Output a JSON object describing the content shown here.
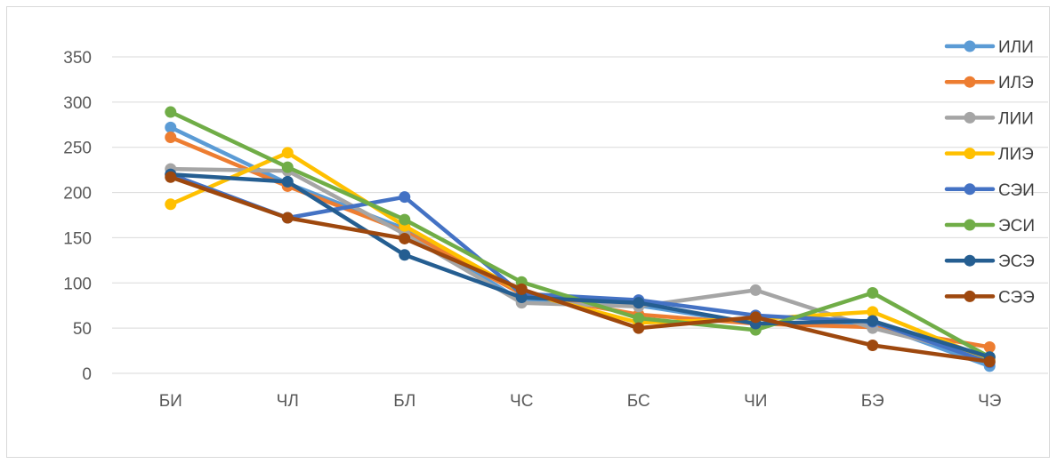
{
  "chart_data": {
    "type": "line",
    "title": "",
    "xlabel": "",
    "ylabel": "",
    "categories": [
      "БИ",
      "ЧЛ",
      "БЛ",
      "ЧС",
      "БС",
      "ЧИ",
      "БЭ",
      "ЧЭ"
    ],
    "ylim": [
      0,
      350
    ],
    "yticks": [
      0,
      50,
      100,
      150,
      200,
      250,
      300,
      350
    ],
    "grid": true,
    "legend_position": "right",
    "series": [
      {
        "name": "ИЛИ",
        "color": "#5B9BD5",
        "values": [
          272,
          210,
          160,
          80,
          75,
          55,
          55,
          8
        ]
      },
      {
        "name": "ИЛЭ",
        "color": "#ED7D31",
        "values": [
          261,
          207,
          157,
          88,
          65,
          55,
          51,
          29
        ]
      },
      {
        "name": "ЛИИ",
        "color": "#A5A5A5",
        "values": [
          226,
          224,
          154,
          78,
          74,
          92,
          50,
          18
        ]
      },
      {
        "name": "ЛИЭ",
        "color": "#FFC000",
        "values": [
          187,
          244,
          163,
          90,
          56,
          60,
          68,
          15
        ]
      },
      {
        "name": "СЭИ",
        "color": "#4472C4",
        "values": [
          220,
          172,
          195,
          88,
          81,
          64,
          57,
          12
        ]
      },
      {
        "name": "ЭСИ",
        "color": "#70AD47",
        "values": [
          289,
          228,
          170,
          101,
          61,
          48,
          89,
          18
        ]
      },
      {
        "name": "ЭСЭ",
        "color": "#255E91",
        "values": [
          220,
          212,
          131,
          84,
          78,
          55,
          58,
          18
        ]
      },
      {
        "name": "СЭЭ",
        "color": "#9E480E",
        "values": [
          217,
          172,
          149,
          93,
          50,
          62,
          31,
          13
        ]
      }
    ]
  }
}
